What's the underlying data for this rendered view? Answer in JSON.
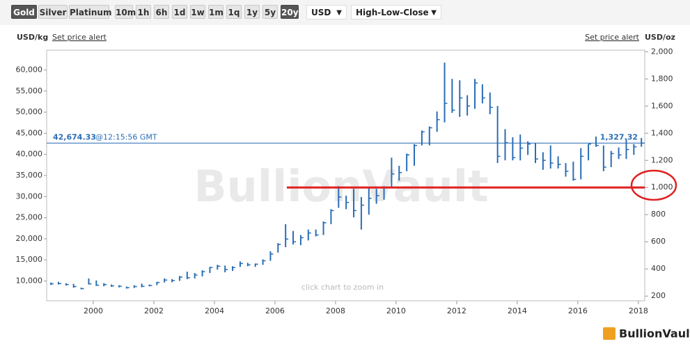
{
  "toolbar": {
    "metals": [
      "Gold",
      "Silver",
      "Platinum"
    ],
    "active_metal": "Gold",
    "periods": [
      "10m",
      "1h",
      "6h",
      "1d",
      "1w",
      "1m",
      "1q",
      "1y",
      "5y",
      "20y"
    ],
    "active_period": "20y",
    "currency": "USD",
    "chart_style": "High-Low-Close"
  },
  "chart_data": {
    "type": "hlc",
    "y_label": "USD/kg",
    "y2_label": "USD/oz",
    "price_alert": "Set price alert",
    "watermark": "BullionVault",
    "hint": "click chart to zoom in",
    "logo": "BullionVault",
    "xlim": [
      1998.46,
      2018.21
    ],
    "xticks": [
      2000,
      2002,
      2004,
      2006,
      2008,
      2010,
      2012,
      2014,
      2016,
      2018
    ],
    "ylim": [
      5300,
      64700
    ],
    "yticks": [
      {
        "value": 10000,
        "label": "10,000"
      },
      {
        "value": 15000,
        "label": "15,000"
      },
      {
        "value": 20000,
        "label": "20,000"
      },
      {
        "value": 25000,
        "label": "25,000"
      },
      {
        "value": 30000,
        "label": "30,000"
      },
      {
        "value": 35000,
        "label": "35,000"
      },
      {
        "value": 40000,
        "label": "40,000"
      },
      {
        "value": 45000,
        "label": "45,000"
      },
      {
        "value": 50000,
        "label": "50,000"
      },
      {
        "value": 55000,
        "label": "55,000"
      },
      {
        "value": 60000,
        "label": "60,000"
      }
    ],
    "y2lim": [
      165,
      2012
    ],
    "y2ticks": [
      200,
      400,
      600,
      800,
      {
        "value": 1000,
        "label": "1,000"
      },
      {
        "value": 1200,
        "label": "1,200"
      },
      {
        "value": 1400,
        "label": "1,400"
      },
      {
        "value": 1600,
        "label": "1,600"
      },
      {
        "value": 1800,
        "label": "1,800"
      },
      {
        "value": 2000,
        "label": "2,000"
      }
    ],
    "price_line": {
      "value": 1327.32,
      "label": "1,327.32",
      "left_label": "42,674.33",
      "time": "@12:15:56 GMT",
      "color": "#2a6db5"
    },
    "highlight_level": 1000,
    "highlight_color": "#e02020",
    "x": [
      1998.6,
      1998.85,
      1999.1,
      1999.35,
      1999.6,
      1999.85,
      2000.1,
      2000.35,
      2000.6,
      2000.85,
      2001.1,
      2001.35,
      2001.6,
      2001.85,
      2002.1,
      2002.35,
      2002.6,
      2002.85,
      2003.1,
      2003.35,
      2003.6,
      2003.85,
      2004.1,
      2004.35,
      2004.6,
      2004.85,
      2005.1,
      2005.35,
      2005.6,
      2005.85,
      2006.1,
      2006.35,
      2006.6,
      2006.85,
      2007.1,
      2007.35,
      2007.6,
      2007.85,
      2008.1,
      2008.35,
      2008.6,
      2008.85,
      2009.1,
      2009.35,
      2009.6,
      2009.85,
      2010.1,
      2010.35,
      2010.6,
      2010.85,
      2011.1,
      2011.35,
      2011.6,
      2011.85,
      2012.1,
      2012.35,
      2012.6,
      2012.85,
      2013.1,
      2013.35,
      2013.6,
      2013.85,
      2014.1,
      2014.35,
      2014.6,
      2014.85,
      2015.1,
      2015.35,
      2015.6,
      2015.85,
      2016.1,
      2016.35,
      2016.6,
      2016.85,
      2017.1,
      2017.35,
      2017.6,
      2017.85,
      2018.1
    ],
    "series": [
      {
        "axis": "y2",
        "color": "#2a6db5",
        "high": [
          300,
          305,
          295,
          290,
          262,
          330,
          315,
          295,
          285,
          280,
          270,
          280,
          292,
          285,
          305,
          330,
          325,
          348,
          380,
          370,
          390,
          415,
          430,
          425,
          420,
          455,
          445,
          440,
          470,
          530,
          590,
          730,
          680,
          650,
          690,
          690,
          750,
          840,
          1010,
          940,
          990,
          930,
          1000,
          990,
          1010,
          1220,
          1160,
          1250,
          1320,
          1420,
          1450,
          1560,
          1920,
          1800,
          1790,
          1680,
          1800,
          1760,
          1700,
          1600,
          1430,
          1370,
          1390,
          1340,
          1330,
          1260,
          1310,
          1230,
          1180,
          1190,
          1290,
          1320,
          1375,
          1310,
          1270,
          1295,
          1355,
          1320,
          1365
        ],
        "low": [
          282,
          285,
          278,
          262,
          250,
          285,
          275,
          272,
          268,
          264,
          255,
          260,
          265,
          272,
          280,
          300,
          302,
          312,
          325,
          330,
          345,
          370,
          395,
          375,
          385,
          415,
          420,
          415,
          430,
          460,
          520,
          560,
          580,
          575,
          610,
          640,
          650,
          730,
          850,
          840,
          780,
          690,
          800,
          880,
          910,
          1000,
          1050,
          1120,
          1160,
          1310,
          1310,
          1410,
          1480,
          1550,
          1520,
          1530,
          1580,
          1620,
          1540,
          1180,
          1200,
          1200,
          1200,
          1240,
          1180,
          1130,
          1140,
          1140,
          1080,
          1050,
          1060,
          1200,
          1300,
          1120,
          1150,
          1210,
          1210,
          1240,
          1300
        ],
        "close": [
          290,
          292,
          285,
          270,
          255,
          290,
          280,
          285,
          275,
          272,
          262,
          270,
          272,
          278,
          300,
          318,
          315,
          340,
          335,
          355,
          380,
          410,
          420,
          395,
          410,
          440,
          430,
          435,
          460,
          510,
          580,
          620,
          600,
          630,
          665,
          650,
          740,
          830,
          930,
          890,
          830,
          870,
          920,
          940,
          1000,
          1100,
          1110,
          1240,
          1310,
          1410,
          1440,
          1500,
          1620,
          1570,
          1660,
          1600,
          1770,
          1660,
          1590,
          1230,
          1330,
          1220,
          1290,
          1320,
          1210,
          1200,
          1180,
          1170,
          1120,
          1060,
          1230,
          1320,
          1310,
          1150,
          1250,
          1240,
          1280,
          1300,
          1327
        ]
      }
    ]
  }
}
